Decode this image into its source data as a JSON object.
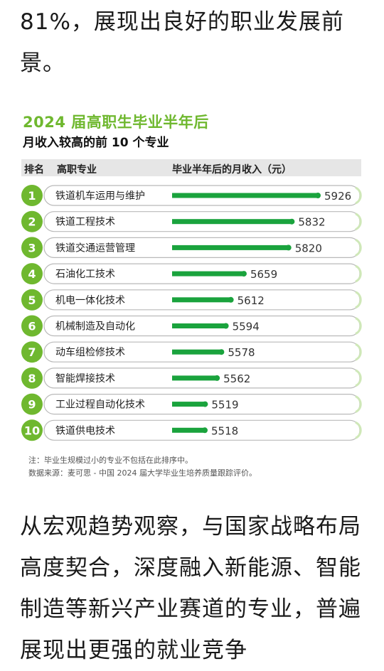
{
  "paragraph_top": "81%，展现出良好的职业发展前景。",
  "paragraph_bottom": "从宏观趋势观察，与国家战略布局高度契合，深度融入新能源、智能制造等新兴产业赛道的专业，普遍展现出更强的就业竞争",
  "chart_data": {
    "type": "bar",
    "title": "2024 届高职生毕业半年后",
    "subtitle": "月收入较高的前 10 个专业",
    "headers": {
      "rank": "排名",
      "major": "高职专业",
      "income": "毕业半年后的月收入（元）"
    },
    "ranks": [
      "1",
      "2",
      "3",
      "4",
      "5",
      "6",
      "7",
      "8",
      "9",
      "10"
    ],
    "categories": [
      "铁道机车运用与维护",
      "铁道工程技术",
      "铁道交通运营管理",
      "石油化工技术",
      "机电一体化技术",
      "机械制造及自动化",
      "动车组检修技术",
      "智能焊接技术",
      "工业过程自动化技术",
      "铁道供电技术"
    ],
    "values": [
      5926,
      5832,
      5820,
      5659,
      5612,
      5594,
      5578,
      5562,
      5519,
      5518
    ],
    "note": "注：毕业生规模过小的专业不包括在此排序中。",
    "source": "数据来源：麦可思 - 中国 2024 届大学毕业生培养质量跟踪评价。",
    "colors": {
      "accent": "#6fb82f",
      "bar": "#1aa33d",
      "row_border": "#b9b9b9"
    }
  }
}
